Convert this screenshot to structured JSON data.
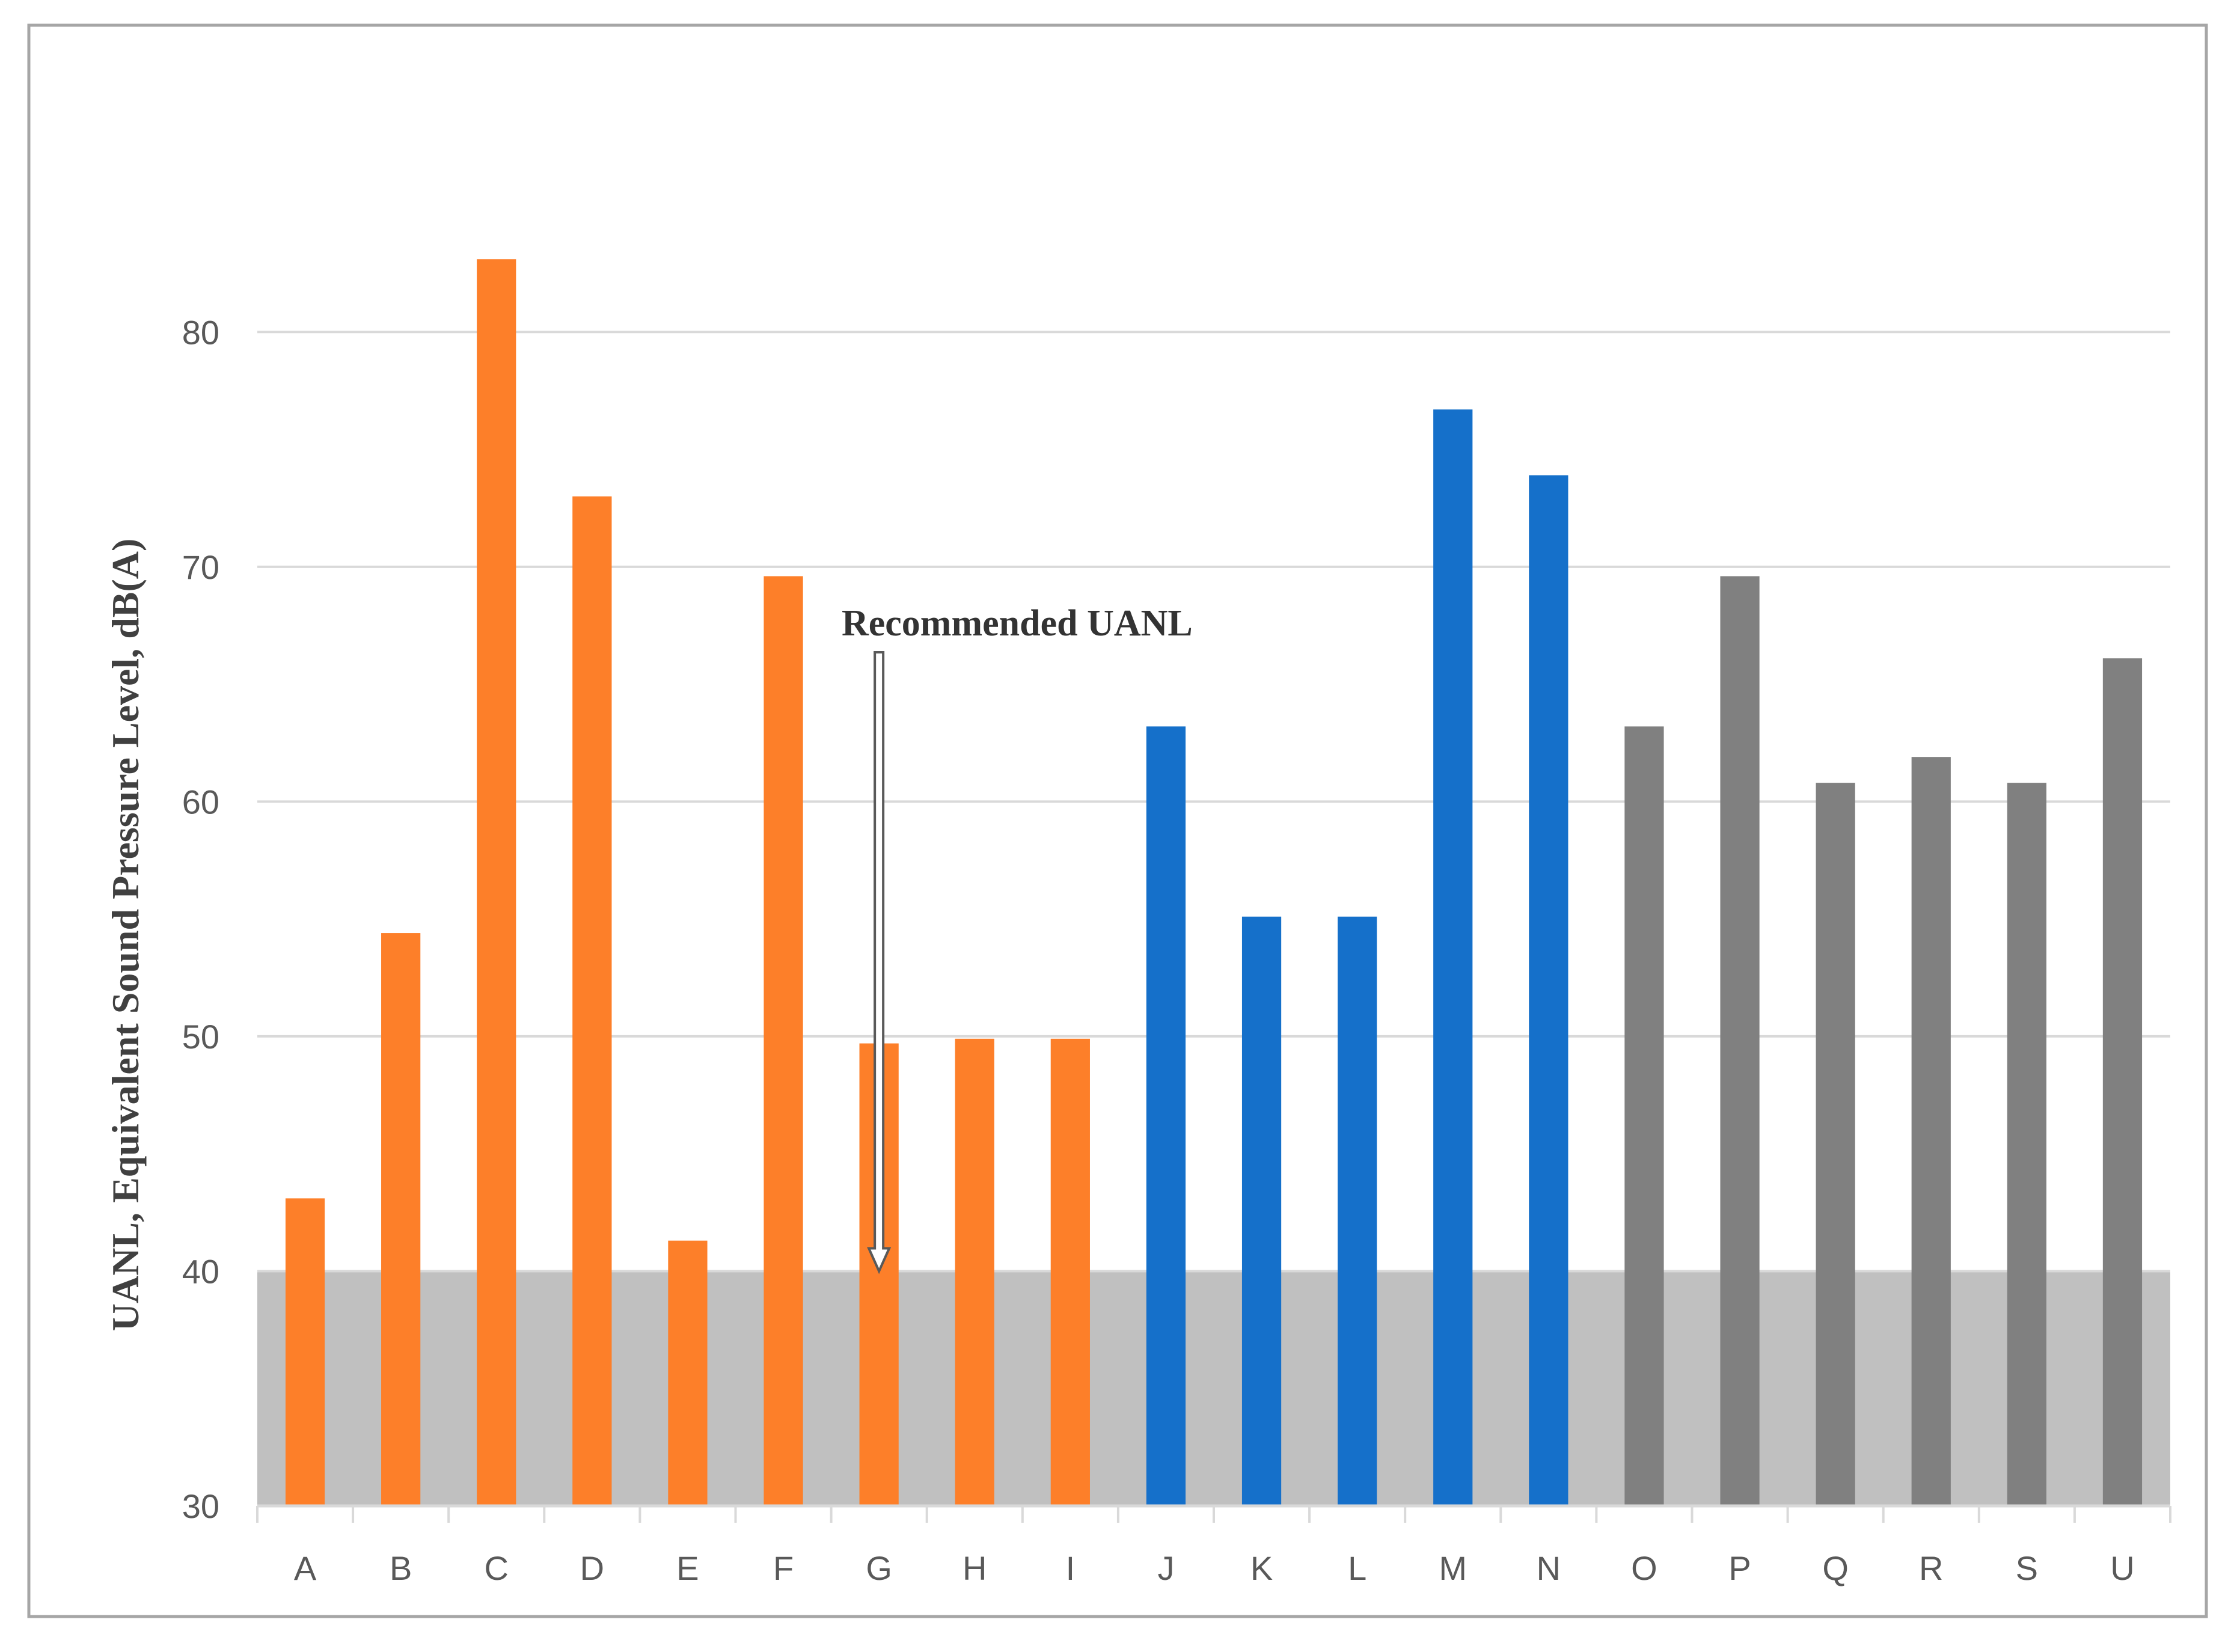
{
  "chart_data": {
    "type": "bar",
    "ylabel": "UANL, Equivalent Sound Pressure Level, dB(A)",
    "xlabel": "",
    "ylim": [
      30,
      85
    ],
    "yticks": [
      30,
      40,
      50,
      60,
      70,
      80
    ],
    "grid": true,
    "categories": [
      "A",
      "B",
      "C",
      "D",
      "E",
      "F",
      "G",
      "H",
      "I",
      "J",
      "K",
      "L",
      "M",
      "N",
      "O",
      "P",
      "Q",
      "R",
      "S",
      "U"
    ],
    "values": [
      43.1,
      54.4,
      83.1,
      73.0,
      41.3,
      69.6,
      49.7,
      49.9,
      49.9,
      63.2,
      55.1,
      55.1,
      76.7,
      73.9,
      63.2,
      69.6,
      60.8,
      61.9,
      60.8,
      66.1
    ],
    "bar_colors": [
      "#fd7f29",
      "#fd7f29",
      "#fd7f29",
      "#fd7f29",
      "#fd7f29",
      "#fd7f29",
      "#fd7f29",
      "#fd7f29",
      "#fd7f29",
      "#1570ca",
      "#1570ca",
      "#1570ca",
      "#1570ca",
      "#1570ca",
      "#808080",
      "#808080",
      "#808080",
      "#808080",
      "#808080",
      "#808080"
    ],
    "recommended_band": {
      "from": 30,
      "to": 40,
      "color": "#c0c0c0"
    },
    "annotation": {
      "text": "Recommended UANL",
      "points_to_value": 40,
      "at_category_index": 6.5
    }
  }
}
